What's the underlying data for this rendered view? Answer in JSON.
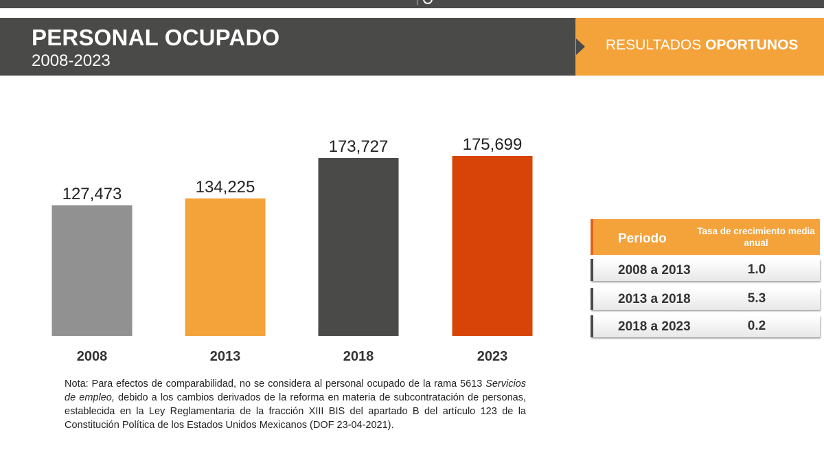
{
  "header": {
    "title": "PERSONAL OCUPADO",
    "subtitle": "2008-2023",
    "badge_regular": "RESULTADOS ",
    "badge_bold": "OPORTUNOS"
  },
  "colors": {
    "header_dark": "#4a4a49",
    "accent_orange": "#f4a23a",
    "bar_2008": "#919191",
    "bar_2013": "#f4a23a",
    "bar_2018": "#4a4a49",
    "bar_2023": "#d84407"
  },
  "chart_data": {
    "type": "bar",
    "categories": [
      "2008",
      "2013",
      "2018",
      "2023"
    ],
    "values": [
      127473,
      134225,
      173727,
      175699
    ],
    "value_labels": [
      "127,473",
      "134,225",
      "173,727",
      "175,699"
    ],
    "title": "",
    "xlabel": "",
    "ylabel": "",
    "ylim": [
      0,
      200000
    ],
    "grid": false,
    "legend": "none"
  },
  "growth_table": {
    "header_period": "Periodo",
    "header_rate": "Tasa de crecimiento media anual",
    "rows": [
      {
        "period": "2008 a 2013",
        "rate": "1.0"
      },
      {
        "period": "2013 a 2018",
        "rate": "5.3"
      },
      {
        "period": "2018 a 2023",
        "rate": "0.2"
      }
    ]
  },
  "note": {
    "prefix": "Nota: Para efectos de comparabilidad, no se considera al personal ocupado de la rama 5613 ",
    "italic": "Servicios de empleo,",
    "suffix": " debido a los cambios derivados de la reforma en materia de subcontratación de personas, establecida en la Ley Reglamentaria de la fracción XIII BIS del apartado B del artículo 123 de la Constitución Política de los Estados Unidos Mexicanos (DOF 23-04-2021)."
  }
}
